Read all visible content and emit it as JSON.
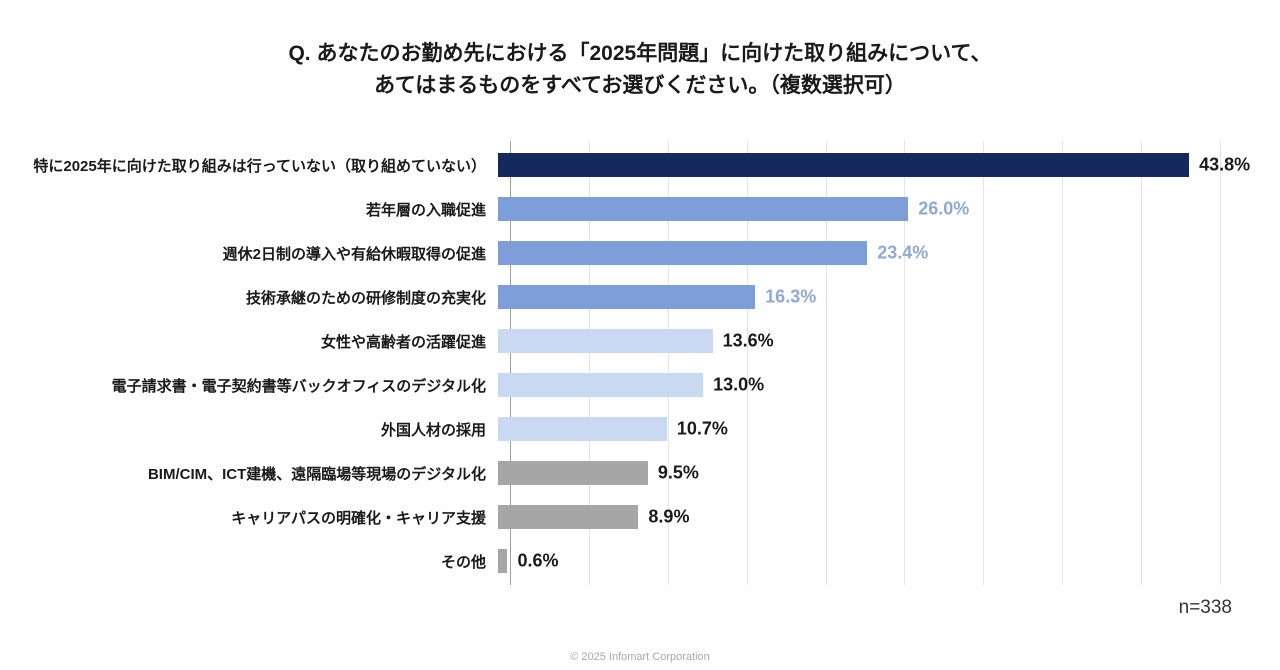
{
  "title": {
    "line1": "Q. あなたのお勤め先における「2025年問題」に向けた取り組みについて、",
    "line2": "あてはまるものをすべてお選びください。（複数選択可）"
  },
  "footer": {
    "copyright": "© 2025 Infomart Corporation"
  },
  "colors": {
    "navy": "#16295f",
    "medium_blue": "#7d9ed8",
    "light_blue": "#c9d9f1",
    "gray": "#a6a6a6",
    "gridline": "#e4e4e4",
    "axis": "#9f9f9f"
  },
  "chart_data": {
    "type": "bar",
    "orientation": "horizontal",
    "title": "Q. あなたのお勤め先における「2025年問題」に向けた取り組みについて、あてはまるものをすべてお選びください。（複数選択可）",
    "xlabel": "",
    "ylabel": "",
    "xlim": [
      0,
      45
    ],
    "gridline_step_percent": 5,
    "grid": true,
    "sample_size": "n=338",
    "bars": [
      {
        "label": "特に2025年に向けた取り組みは行っていない（取り組めていない）",
        "value": 43.8,
        "value_label": "43.8%",
        "bar_color": "#16295f",
        "value_color": "#1a1a1a"
      },
      {
        "label": "若年層の入職促進",
        "value": 26.0,
        "value_label": "26.0%",
        "bar_color": "#7d9ed8",
        "value_color": "#8ea8d8"
      },
      {
        "label": "週休2日制の導入や有給休暇取得の促進",
        "value": 23.4,
        "value_label": "23.4%",
        "bar_color": "#7d9ed8",
        "value_color": "#8ea8d8"
      },
      {
        "label": "技術承継のための研修制度の充実化",
        "value": 16.3,
        "value_label": "16.3%",
        "bar_color": "#7d9ed8",
        "value_color": "#8ea8d8"
      },
      {
        "label": "女性や高齢者の活躍促進",
        "value": 13.6,
        "value_label": "13.6%",
        "bar_color": "#c9d9f1",
        "value_color": "#1a1a1a"
      },
      {
        "label": "電子請求書・電子契約書等バックオフィスのデジタル化",
        "value": 13.0,
        "value_label": "13.0%",
        "bar_color": "#c9d9f1",
        "value_color": "#1a1a1a"
      },
      {
        "label": "外国人材の採用",
        "value": 10.7,
        "value_label": "10.7%",
        "bar_color": "#c9d9f1",
        "value_color": "#1a1a1a"
      },
      {
        "label": "BIM/CIM、ICT建機、遠隔臨場等現場のデジタル化",
        "value": 9.5,
        "value_label": "9.5%",
        "bar_color": "#a6a6a6",
        "value_color": "#1a1a1a"
      },
      {
        "label": "キャリアパスの明確化・キャリア支援",
        "value": 8.9,
        "value_label": "8.9%",
        "bar_color": "#a6a6a6",
        "value_color": "#1a1a1a"
      },
      {
        "label": "その他",
        "value": 0.6,
        "value_label": "0.6%",
        "bar_color": "#a6a6a6",
        "value_color": "#1a1a1a"
      }
    ]
  }
}
